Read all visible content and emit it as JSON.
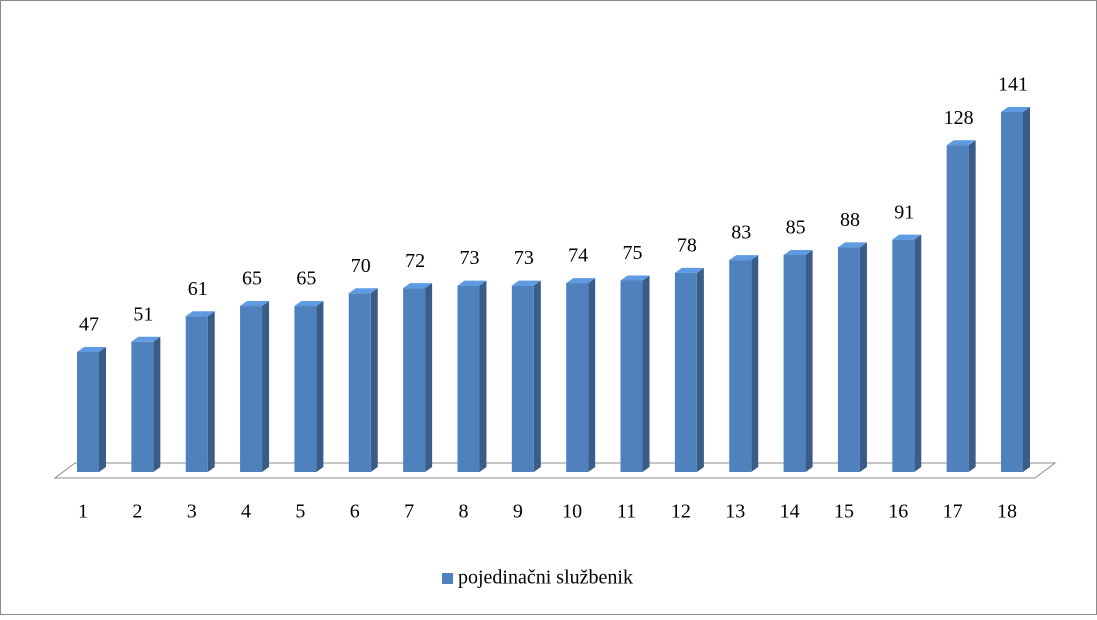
{
  "chart_data": {
    "type": "bar",
    "categories": [
      "1",
      "2",
      "3",
      "4",
      "5",
      "6",
      "7",
      "8",
      "9",
      "10",
      "11",
      "12",
      "13",
      "14",
      "15",
      "16",
      "17",
      "18"
    ],
    "series": [
      {
        "name": "pojedinačni službenik",
        "color": "#4f81bd",
        "values": [
          47,
          51,
          61,
          65,
          65,
          70,
          72,
          73,
          73,
          74,
          75,
          78,
          83,
          85,
          88,
          91,
          128,
          141
        ]
      }
    ],
    "legend": "bottom",
    "grid": false
  }
}
